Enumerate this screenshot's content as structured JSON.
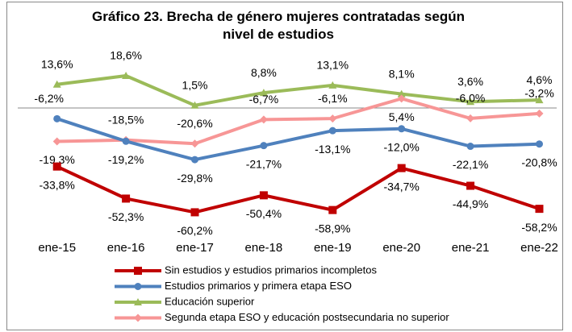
{
  "chart_data": {
    "type": "line",
    "title": "Gráfico 23. Brecha de género mujeres contratadas según nivel de estudios",
    "categories": [
      "ene-15",
      "ene-16",
      "ene-17",
      "ene-18",
      "ene-19",
      "ene-20",
      "ene-21",
      "ene-22"
    ],
    "ylim": [
      -70,
      20
    ],
    "legend": "bottom",
    "series": [
      {
        "name": "Sin estudios y estudios primarios incompletos",
        "color": "#c00000",
        "marker": "square",
        "values": [
          -33.8,
          -52.3,
          -60.2,
          -50.4,
          -58.9,
          -34.7,
          -44.9,
          -58.2
        ],
        "value_labels": [
          "-33,8%",
          "-52,3%",
          "-60,2%",
          "-50,4%",
          "-58,9%",
          "-34,7%",
          "-44,9%",
          "-58,2%"
        ]
      },
      {
        "name": "Estudios primarios y primera etapa ESO",
        "color": "#4f81bd",
        "marker": "circle",
        "values": [
          -6.2,
          -19.2,
          -29.8,
          -21.7,
          -13.1,
          -12.0,
          -22.1,
          -20.8
        ],
        "value_labels": [
          "-6,2%",
          "-19,2%",
          "-29,8%",
          "-21,7%",
          "-13,1%",
          "-12,0%",
          "-22,1%",
          "-20,8%"
        ]
      },
      {
        "name": "Educación superior",
        "color": "#9bbb59",
        "marker": "triangle",
        "values": [
          13.6,
          18.6,
          1.5,
          8.8,
          13.1,
          8.1,
          3.6,
          4.6
        ],
        "value_labels": [
          "13,6%",
          "18,6%",
          "1,5%",
          "8,8%",
          "13,1%",
          "8,1%",
          "3,6%",
          "4,6%"
        ]
      },
      {
        "name": "Segunda etapa ESO y educación postsecundaria no superior",
        "color": "#f79696",
        "marker": "diamond",
        "values": [
          -19.3,
          -18.5,
          -20.6,
          -6.7,
          -6.1,
          5.4,
          -6.0,
          -3.2
        ],
        "value_labels": [
          "-19,3%",
          "-18,5%",
          "-20,6%",
          "-6,7%",
          "-6,1%",
          "5,4%",
          "-6,0%",
          "-3,2%"
        ]
      }
    ]
  }
}
